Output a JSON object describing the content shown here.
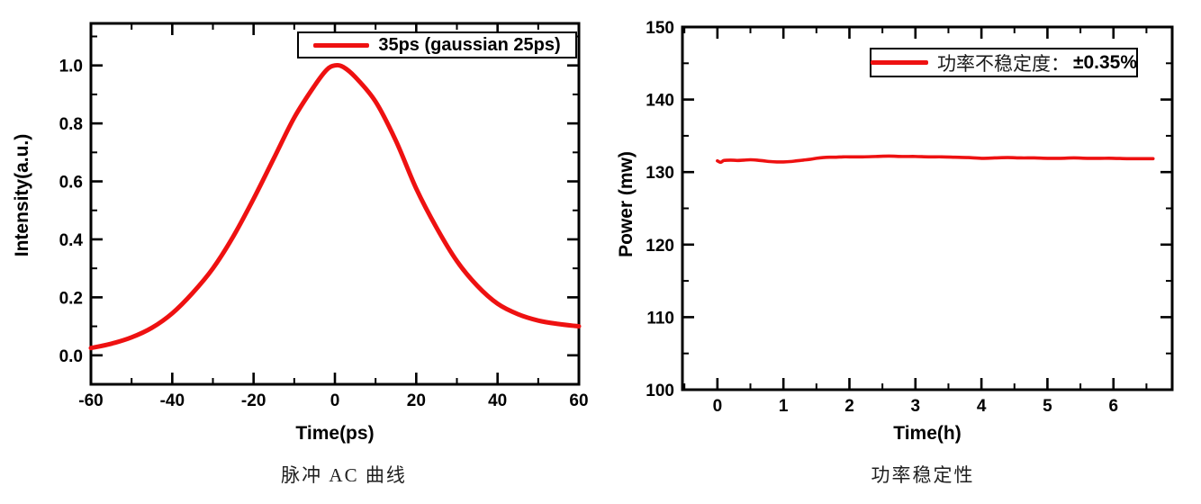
{
  "page": {
    "background": "#ffffff"
  },
  "colors": {
    "series": "#ee1111",
    "axis": "#000000",
    "text": "#000000"
  },
  "chart_data": [
    {
      "type": "line",
      "title": "",
      "xlabel": "Time(ps)",
      "ylabel": "Intensity(a.u.)",
      "caption": "脉冲 AC 曲线",
      "xlim": [
        -60,
        60
      ],
      "ylim": [
        -0.1,
        1.145
      ],
      "xtick_values": [
        -60,
        -40,
        -20,
        0,
        20,
        40,
        60
      ],
      "xtick_labels": [
        "-60",
        "-40",
        "-20",
        "0",
        "20",
        "40",
        "60"
      ],
      "xminor_step": 10,
      "ytick_values": [
        0.0,
        0.2,
        0.4,
        0.6,
        0.8,
        1.0
      ],
      "ytick_labels": [
        "0.0",
        "0.2",
        "0.4",
        "0.6",
        "0.8",
        "1.0"
      ],
      "yminor_step": 0.1,
      "grid": false,
      "legend": {
        "label": "35ps (gaussian 25ps)",
        "position": "top-right"
      },
      "series": [
        {
          "name": "35ps (gaussian 25ps)",
          "color": "#ee1111",
          "x": [
            -60,
            -55,
            -50,
            -45,
            -40,
            -35,
            -30,
            -25,
            -20,
            -15,
            -10,
            -5,
            -2,
            0,
            2,
            5,
            10,
            15,
            20,
            25,
            30,
            35,
            40,
            45,
            50,
            55,
            60
          ],
          "y": [
            0.025,
            0.04,
            0.062,
            0.095,
            0.145,
            0.215,
            0.3,
            0.41,
            0.54,
            0.68,
            0.82,
            0.93,
            0.985,
            1.0,
            0.995,
            0.96,
            0.875,
            0.74,
            0.575,
            0.44,
            0.325,
            0.24,
            0.178,
            0.142,
            0.12,
            0.108,
            0.1
          ]
        }
      ]
    },
    {
      "type": "line",
      "title": "",
      "xlabel": "Time(h)",
      "ylabel": "Power (mw)",
      "caption": "功率稳定性",
      "xlim": [
        -0.53,
        6.89
      ],
      "ylim": [
        100,
        150
      ],
      "xtick_values": [
        0,
        1,
        2,
        3,
        4,
        5,
        6
      ],
      "xtick_labels": [
        "0",
        "1",
        "2",
        "3",
        "4",
        "5",
        "6"
      ],
      "xminor_step": 0.5,
      "ytick_values": [
        100,
        110,
        120,
        130,
        140,
        150
      ],
      "ytick_labels": [
        "100",
        "110",
        "120",
        "130",
        "140",
        "150"
      ],
      "yminor_step": 5,
      "grid": false,
      "legend": {
        "label": "功率不稳定度：",
        "value": "±0.35%",
        "position": "top-right"
      },
      "series": [
        {
          "name": "功率不稳定度：±0.35%",
          "color": "#ee1111",
          "x": [
            0,
            0.05,
            0.1,
            0.2,
            0.3,
            0.4,
            0.5,
            0.6,
            0.7,
            0.8,
            0.9,
            1.0,
            1.1,
            1.2,
            1.3,
            1.4,
            1.5,
            1.6,
            1.7,
            1.8,
            1.9,
            2.0,
            2.2,
            2.4,
            2.6,
            2.8,
            3.0,
            3.2,
            3.4,
            3.6,
            3.8,
            4.0,
            4.2,
            4.4,
            4.6,
            4.8,
            5.0,
            5.2,
            5.4,
            5.6,
            5.8,
            6.0,
            6.2,
            6.4,
            6.6
          ],
          "y": [
            131.55,
            131.35,
            131.6,
            131.65,
            131.6,
            131.65,
            131.7,
            131.65,
            131.55,
            131.45,
            131.4,
            131.4,
            131.45,
            131.55,
            131.65,
            131.75,
            131.9,
            132.0,
            132.05,
            132.05,
            132.1,
            132.1,
            132.1,
            132.15,
            132.2,
            132.15,
            132.15,
            132.1,
            132.1,
            132.05,
            132.0,
            131.9,
            131.95,
            132.0,
            131.95,
            131.95,
            131.9,
            131.9,
            131.95,
            131.9,
            131.9,
            131.9,
            131.85,
            131.85,
            131.85
          ]
        }
      ]
    }
  ]
}
